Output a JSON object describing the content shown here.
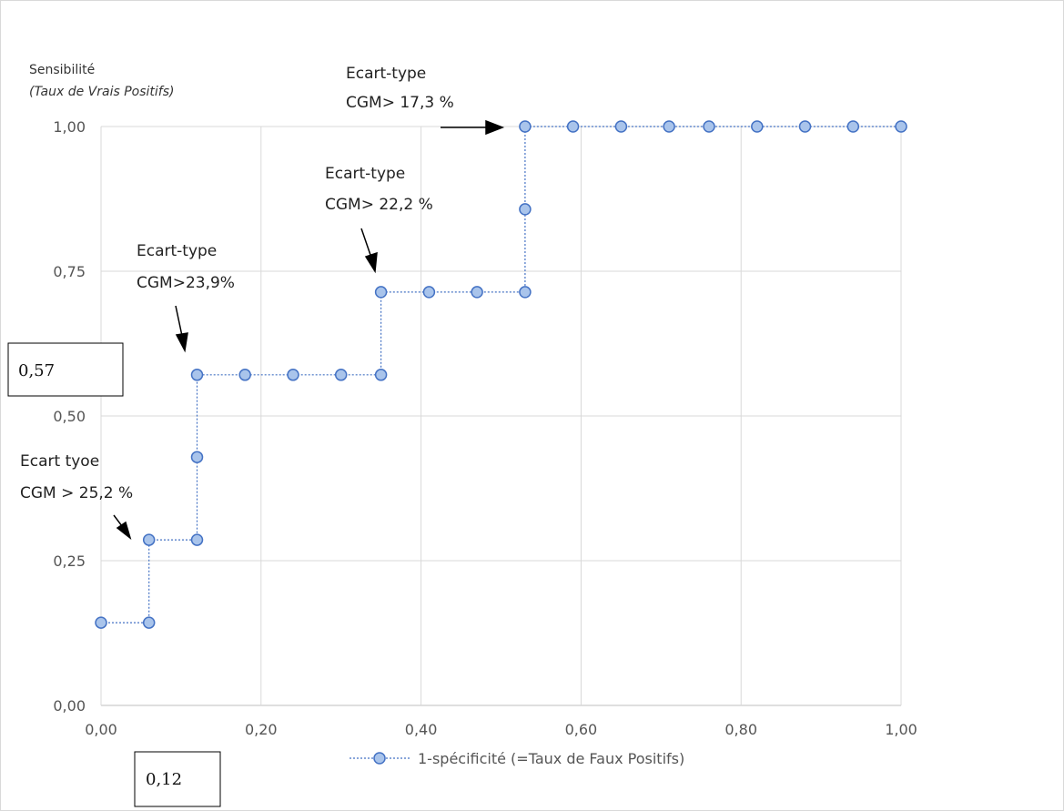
{
  "chart_data": {
    "type": "line",
    "ylabel_line1": "Sensibilité",
    "ylabel_line2": "(Taux de Vrais  Positifs)",
    "xlim": [
      0,
      1
    ],
    "ylim": [
      0,
      1
    ],
    "x_ticks": [
      "0,00",
      "0,20",
      "0,40",
      "0,60",
      "0,80",
      "1,00"
    ],
    "y_ticks": [
      "0,00",
      "0,25",
      "0,50",
      "0,75",
      "1,00"
    ],
    "grid": true,
    "legend_position": "bottom",
    "series": [
      {
        "name": "1-spécificité (=Taux de Faux Positifs)",
        "color": "#4472c4",
        "fill": "#a9c4eb",
        "x": [
          0.0,
          0.06,
          0.06,
          0.12,
          0.12,
          0.12,
          0.18,
          0.24,
          0.3,
          0.35,
          0.35,
          0.41,
          0.47,
          0.53,
          0.53,
          0.53,
          0.59,
          0.65,
          0.71,
          0.76,
          0.82,
          0.88,
          0.94,
          1.0
        ],
        "y": [
          0.143,
          0.143,
          0.286,
          0.286,
          0.429,
          0.571,
          0.571,
          0.571,
          0.571,
          0.571,
          0.714,
          0.714,
          0.714,
          0.714,
          0.857,
          1.0,
          1.0,
          1.0,
          1.0,
          1.0,
          1.0,
          1.0,
          1.0,
          1.0
        ]
      }
    ],
    "annotations": [
      {
        "id": "a1",
        "lines": [
          "Ecart-type",
          "CGM> 17,3 %"
        ]
      },
      {
        "id": "a2",
        "lines": [
          "Ecart-type",
          "CGM> 22,2 %"
        ]
      },
      {
        "id": "a3",
        "lines": [
          "Ecart-type",
          "CGM>23,9%"
        ]
      },
      {
        "id": "a4",
        "lines": [
          "Ecart tyoe",
          "CGM > 25,2 %"
        ]
      }
    ],
    "boxes": {
      "y_value": "0,57",
      "x_value": "0,12"
    }
  }
}
